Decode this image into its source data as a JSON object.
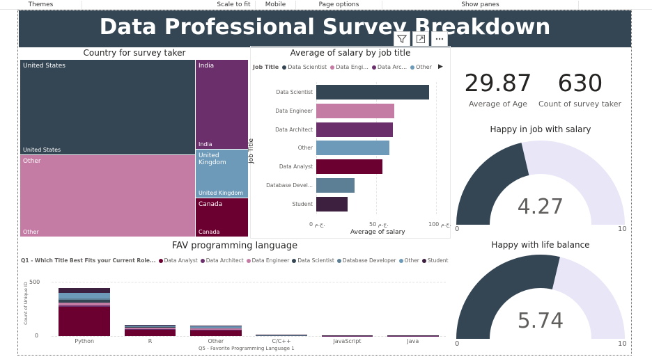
{
  "toolbar": {
    "items": [
      "Themes",
      "Scale to fit",
      "Mobile",
      "Page options",
      "Show panes"
    ]
  },
  "header": {
    "title": "Data Professional Survey Breakdown"
  },
  "visual_header": {
    "icons": [
      "filter-icon",
      "focus-mode-icon",
      "more-options-icon"
    ]
  },
  "treemap": {
    "title": "Country for survey taker",
    "tiles": [
      {
        "label": "United States",
        "color": "#344654"
      },
      {
        "label": "Other",
        "color": "#c47ba4"
      },
      {
        "label": "India",
        "color": "#6b2f6b"
      },
      {
        "label": "United Kingdom",
        "color": "#6d9ab8"
      },
      {
        "label": "Canada",
        "color": "#6b0030"
      }
    ]
  },
  "salary_chart": {
    "title": "Average of salary by job title",
    "legend_title": "Job Title",
    "legend": [
      {
        "label": "Data Scientist",
        "color": "#344654"
      },
      {
        "label": "Data Engi...",
        "color": "#c47ba4"
      },
      {
        "label": "Data Arc...",
        "color": "#6b2f6b"
      },
      {
        "label": "Other",
        "color": "#6d9ab8"
      }
    ],
    "ylabel": "Job Title",
    "xlabel": "Average of salary",
    "xticks": [
      "0 ج.م.",
      "50 ج.م.",
      "100 ج.م."
    ]
  },
  "kpis": {
    "age": {
      "value": "29.87",
      "label": "Average of Age"
    },
    "count": {
      "value": "630",
      "label": "Count of survey taker"
    }
  },
  "gauges": {
    "job": {
      "title": "Happy in job with salary",
      "value": "4.27",
      "min": "0",
      "max": "10",
      "fraction": 0.427
    },
    "life": {
      "title": "Happy with life balance",
      "value": "5.74",
      "min": "0",
      "max": "10",
      "fraction": 0.574
    },
    "fill_color": "#344654",
    "track_color": "#e8e6f7"
  },
  "lang_chart": {
    "title": "FAV programming language",
    "legend_title": "Q1 - Which Title Best Fits your Current Role...",
    "legend": [
      {
        "label": "Data Analyst",
        "color": "#6b0030"
      },
      {
        "label": "Data Architect",
        "color": "#6b2f6b"
      },
      {
        "label": "Data Engineer",
        "color": "#c47ba4"
      },
      {
        "label": "Data Scientist",
        "color": "#344654"
      },
      {
        "label": "Database Developer",
        "color": "#5d7f95"
      },
      {
        "label": "Other",
        "color": "#6d9ab8"
      },
      {
        "label": "Student",
        "color": "#3d2040"
      }
    ],
    "ylabel": "Count of Unique ID",
    "xlabel": "Q5 - Favorite Programming Language 1",
    "yticks": [
      "500",
      "0"
    ]
  },
  "chart_data": [
    {
      "type": "bar",
      "orientation": "horizontal",
      "title": "Average of salary by job title",
      "xlabel": "Average of salary",
      "ylabel": "Job Title",
      "xlim": [
        0,
        100
      ],
      "categories": [
        "Data Scientist",
        "Data Engineer",
        "Data Architect",
        "Other",
        "Data Analyst",
        "Database Devel...",
        "Student"
      ],
      "values": [
        94,
        65,
        64,
        61,
        55,
        32,
        26
      ],
      "colors": [
        "#344654",
        "#c47ba4",
        "#6b2f6b",
        "#6d9ab8",
        "#6b0030",
        "#5d7f95",
        "#3d2040"
      ]
    },
    {
      "type": "bar",
      "orientation": "vertical",
      "stacked": true,
      "title": "FAV programming language",
      "xlabel": "Q5 - Favorite Programming Language 1",
      "ylabel": "Count of Unique ID",
      "ylim": [
        0,
        500
      ],
      "categories": [
        "Python",
        "R",
        "Other",
        "C/C++",
        "JavaScript",
        "Java"
      ],
      "series": [
        {
          "name": "Data Analyst",
          "values": [
            270,
            60,
            55,
            4,
            2,
            2
          ],
          "color": "#6b0030"
        },
        {
          "name": "Data Architect",
          "values": [
            10,
            5,
            5,
            1,
            1,
            1
          ],
          "color": "#6b2f6b"
        },
        {
          "name": "Data Engineer",
          "values": [
            30,
            10,
            10,
            2,
            1,
            1
          ],
          "color": "#c47ba4"
        },
        {
          "name": "Data Scientist",
          "values": [
            25,
            8,
            5,
            1,
            1,
            0
          ],
          "color": "#344654"
        },
        {
          "name": "Database Developer",
          "values": [
            10,
            5,
            5,
            1,
            1,
            1
          ],
          "color": "#5d7f95"
        },
        {
          "name": "Other",
          "values": [
            55,
            10,
            10,
            2,
            1,
            1
          ],
          "color": "#6d9ab8"
        },
        {
          "name": "Student",
          "values": [
            45,
            5,
            5,
            1,
            1,
            1
          ],
          "color": "#3d2040"
        }
      ]
    }
  ]
}
